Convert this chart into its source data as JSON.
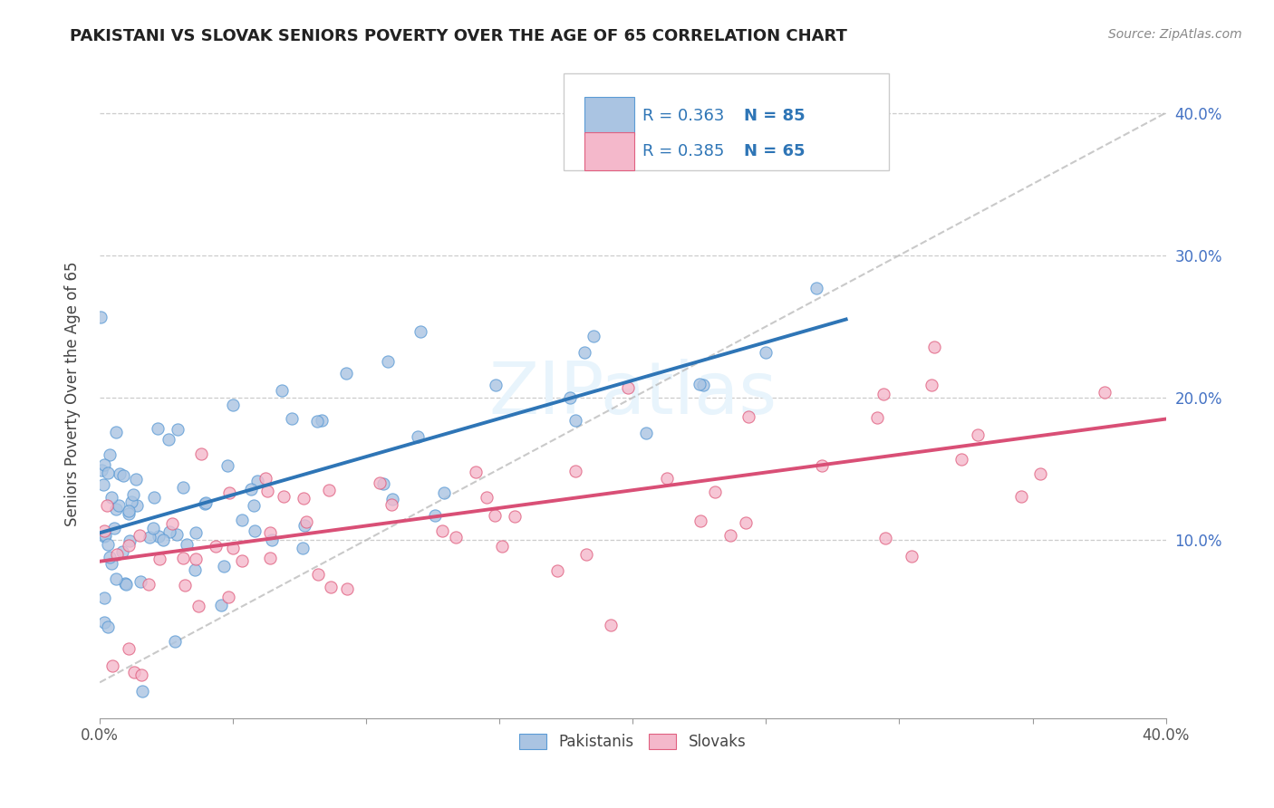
{
  "title": "PAKISTANI VS SLOVAK SENIORS POVERTY OVER THE AGE OF 65 CORRELATION CHART",
  "source": "Source: ZipAtlas.com",
  "ylabel": "Seniors Poverty Over the Age of 65",
  "xlim": [
    0.0,
    0.4
  ],
  "ylim": [
    -0.025,
    0.43
  ],
  "yticks": [
    0.1,
    0.2,
    0.3,
    0.4
  ],
  "watermark": "ZIPatlas",
  "legend_r1": "0.363",
  "legend_n1": "85",
  "legend_r2": "0.385",
  "legend_n2": "65",
  "pakistani_color": "#aac4e2",
  "pakistani_edge": "#5b9bd5",
  "slovak_color": "#f4b8cb",
  "slovak_edge": "#e06080",
  "trend_pk_color": "#2e75b6",
  "trend_sk_color": "#d94f76",
  "diagonal_color": "#b8b8b8",
  "background_color": "#ffffff",
  "pk_seed": 42,
  "sk_seed": 77,
  "pk_n": 85,
  "sk_n": 65,
  "pk_trend_x0": 0.0,
  "pk_trend_y0": 0.105,
  "pk_trend_x1": 0.28,
  "pk_trend_y1": 0.255,
  "sk_trend_x0": 0.0,
  "sk_trend_y0": 0.085,
  "sk_trend_x1": 0.4,
  "sk_trend_y1": 0.185
}
